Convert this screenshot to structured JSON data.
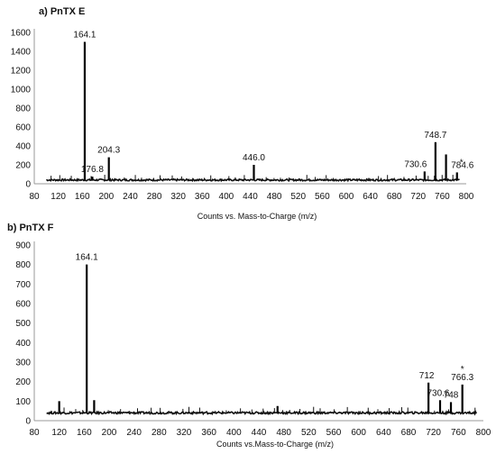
{
  "chart_data": [
    {
      "type": "bar",
      "title": "a) PnTX E",
      "xlabel": "Counts vs. Mass-to-Charge (m/z)",
      "ylabel": "",
      "xlim": [
        80,
        800
      ],
      "ylim": [
        0,
        1600
      ],
      "xticks": [
        80,
        120,
        160,
        200,
        240,
        280,
        320,
        360,
        400,
        440,
        480,
        520,
        560,
        600,
        640,
        680,
        720,
        760,
        800
      ],
      "yticks": [
        0,
        200,
        400,
        600,
        800,
        1000,
        1200,
        1400,
        1600
      ],
      "baseline": 40,
      "baseline_range": [
        100,
        790
      ],
      "peaks": [
        {
          "x": 164.1,
          "y": 1500,
          "label": "164.1"
        },
        {
          "x": 176.8,
          "y": 75,
          "label": "176.8"
        },
        {
          "x": 204.3,
          "y": 280,
          "label": "204.3"
        },
        {
          "x": 446.0,
          "y": 200,
          "label": "446.0"
        },
        {
          "x": 730.6,
          "y": 130,
          "label": "730.6"
        },
        {
          "x": 748.7,
          "y": 440,
          "label": "748.7"
        },
        {
          "x": 766.3,
          "y": 310,
          "label": ""
        },
        {
          "x": 784.6,
          "y": 120,
          "label": "784.6",
          "mark": "*"
        }
      ]
    },
    {
      "type": "bar",
      "title": "b) PnTX F",
      "xlabel": "Counts vs.Mass-to-Charge (m/z)",
      "ylabel": "",
      "xlim": [
        80,
        800
      ],
      "ylim": [
        0,
        900
      ],
      "xticks": [
        80,
        120,
        160,
        200,
        240,
        280,
        320,
        360,
        400,
        440,
        480,
        520,
        560,
        600,
        640,
        680,
        720,
        760,
        800
      ],
      "yticks": [
        0,
        100,
        200,
        300,
        400,
        500,
        600,
        700,
        800,
        900
      ],
      "baseline": 40,
      "baseline_range": [
        100,
        790
      ],
      "peaks": [
        {
          "x": 120,
          "y": 100,
          "label": ""
        },
        {
          "x": 164.1,
          "y": 800,
          "label": "164.1"
        },
        {
          "x": 176,
          "y": 105,
          "label": ""
        },
        {
          "x": 470,
          "y": 75,
          "label": ""
        },
        {
          "x": 712,
          "y": 195,
          "label": "712"
        },
        {
          "x": 730.6,
          "y": 105,
          "label": "730.6"
        },
        {
          "x": 748,
          "y": 95,
          "label": "748"
        },
        {
          "x": 766.3,
          "y": 185,
          "label": "766.3",
          "mark": "*"
        }
      ]
    }
  ]
}
